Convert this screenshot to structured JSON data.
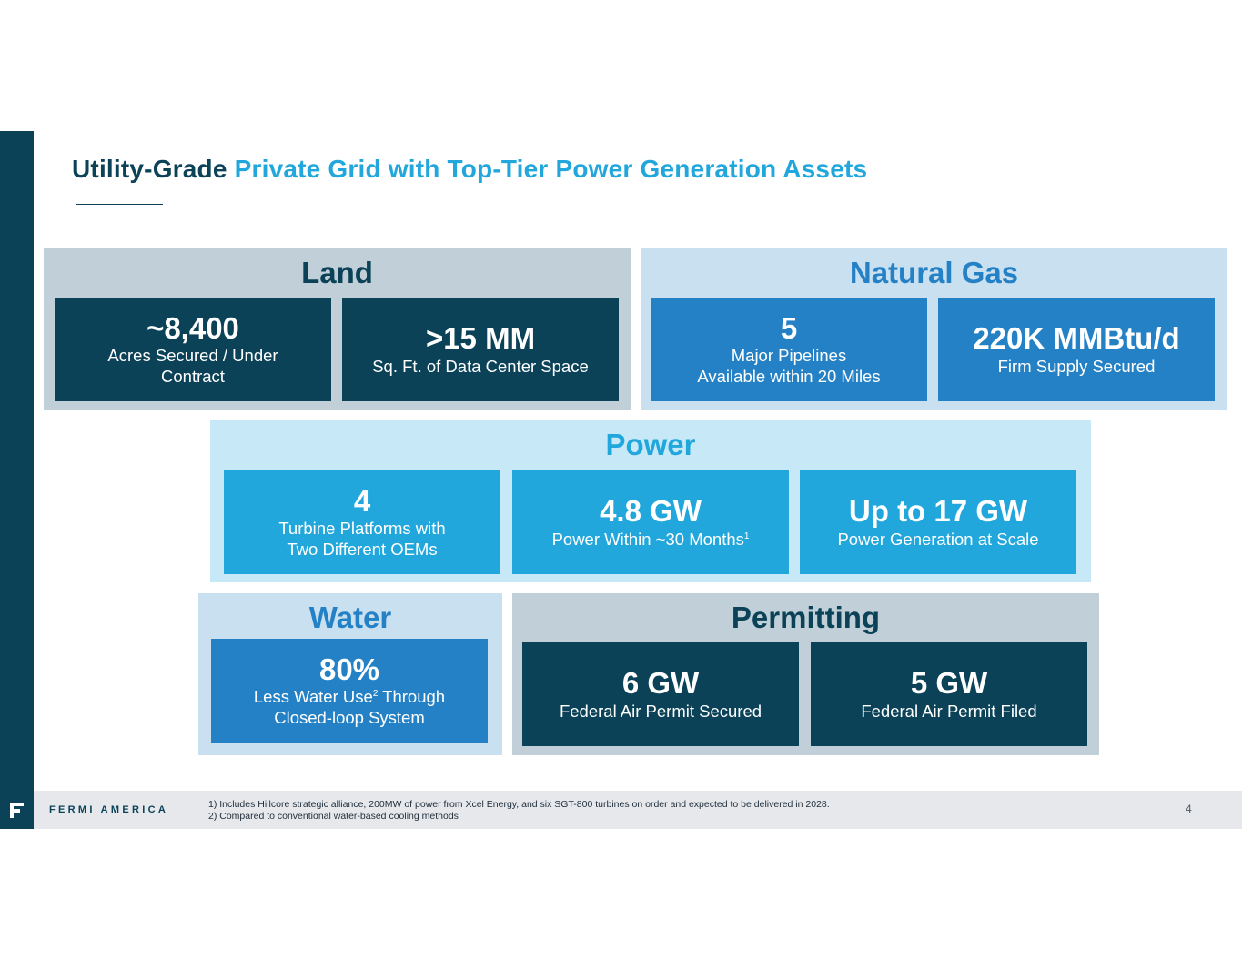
{
  "title": {
    "dark": "Utility-Grade",
    "light": "Private Grid with Top-Tier Power Generation Assets"
  },
  "colors": {
    "navy": "#0b4258",
    "mid_blue": "#2581c5",
    "cyan": "#22a7dc",
    "gray_panel": "#c1d0d8",
    "light_panel": "#c8e0f0",
    "pale_cyan_panel": "#c6e8f7"
  },
  "land": {
    "heading": "Land",
    "cards": [
      {
        "value": "~8,400",
        "line1": "Acres Secured / Under",
        "line2": "Contract"
      },
      {
        "value": ">15 MM",
        "line1": "Sq. Ft. of Data Center Space"
      }
    ]
  },
  "natural_gas": {
    "heading": "Natural Gas",
    "cards": [
      {
        "value": "5",
        "line1": "Major Pipelines",
        "line2": "Available within 20 Miles"
      },
      {
        "value": "220K MMBtu/d",
        "line1": "Firm Supply Secured"
      }
    ]
  },
  "power": {
    "heading": "Power",
    "cards": [
      {
        "value": "4",
        "line1": "Turbine Platforms with",
        "line2": "Two Different OEMs"
      },
      {
        "value": "4.8 GW",
        "line1": "Power Within ~30 Months",
        "sup": "1"
      },
      {
        "value": "Up to 17 GW",
        "line1": "Power Generation at Scale"
      }
    ]
  },
  "water": {
    "heading": "Water",
    "card": {
      "value": "80%",
      "line1_a": "Less Water Use",
      "sup": "2",
      "line1_b": " Through",
      "line2": "Closed-loop System"
    }
  },
  "permitting": {
    "heading": "Permitting",
    "cards": [
      {
        "value": "6 GW",
        "line1": "Federal Air Permit Secured"
      },
      {
        "value": "5 GW",
        "line1": "Federal Air Permit Filed"
      }
    ]
  },
  "footer": {
    "brand": "FERMI AMERICA",
    "note1": "1) Includes Hillcore strategic alliance, 200MW of power from Xcel Energy, and six SGT-800 turbines on order and expected to be delivered in 2028.",
    "note2": "2) Compared to conventional water-based cooling methods",
    "page": "4"
  }
}
